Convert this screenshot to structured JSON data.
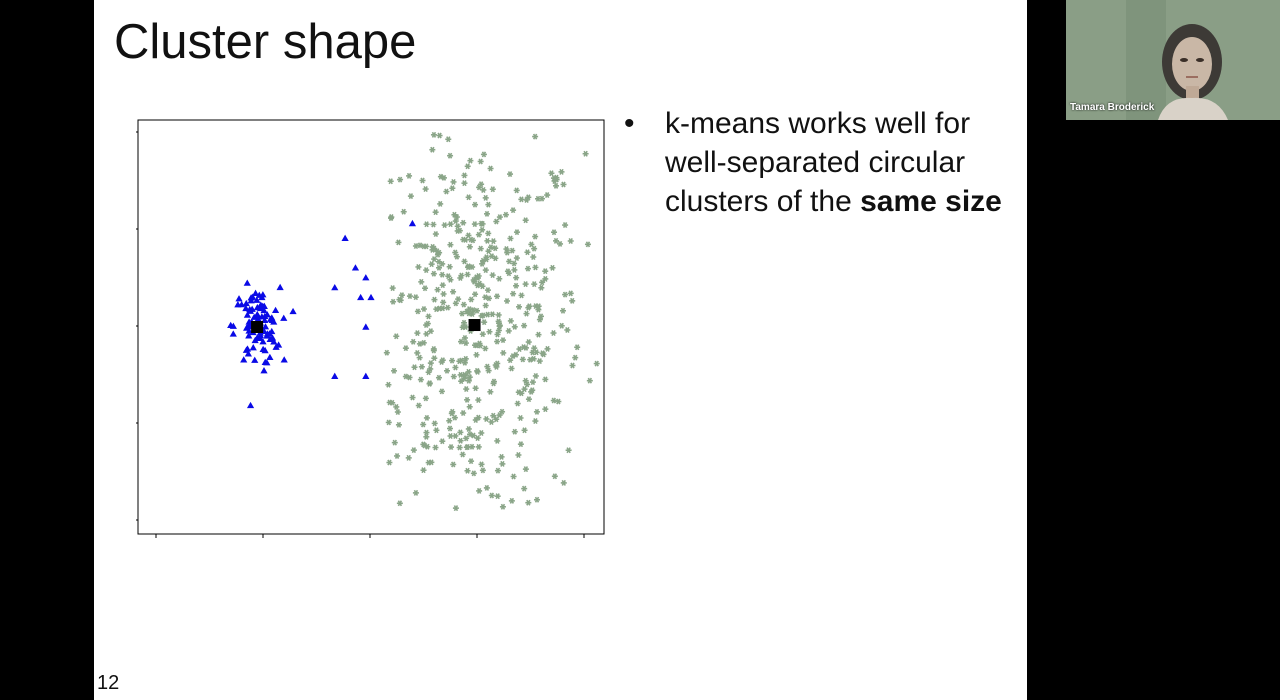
{
  "slide": {
    "title": "Cluster shape",
    "bullet": {
      "text_before": "k-means works well for well-separated circular clusters of the ",
      "bold_text": "same size"
    },
    "page_number": "12"
  },
  "video": {
    "participant_name": "Tamara Broderick",
    "background_color": "#8a9e86"
  },
  "colors": {
    "cluster_small": "#0a0ae6",
    "cluster_large": "#8aa588",
    "centroid": "#000000",
    "axis": "#000000"
  },
  "chart_data": {
    "type": "scatter",
    "title": "",
    "xlabel": "",
    "ylabel": "",
    "x_ticks": 5,
    "y_ticks": 5,
    "tick_labels": false,
    "grid": false,
    "legend": "none",
    "series": [
      {
        "marker": "triangle",
        "color": "#0a0ae6",
        "description_in_slide": "small dense cluster",
        "center": [
          -2.2,
          0.0
        ],
        "spread": 0.22,
        "count": 90,
        "outliers": [
          [
            -0.5,
            0.9
          ],
          [
            -0.7,
            0.4
          ],
          [
            -0.3,
            0.6
          ],
          [
            -0.1,
            0.5
          ],
          [
            0.0,
            0.3
          ],
          [
            -0.2,
            0.3
          ],
          [
            -0.1,
            0.0
          ],
          [
            -0.7,
            -0.5
          ],
          [
            -0.1,
            -0.5
          ],
          [
            0.8,
            1.05
          ]
        ]
      },
      {
        "marker": "star",
        "color": "#8aa588",
        "description_in_slide": "large diffuse cluster",
        "center": [
          2.0,
          0.02
        ],
        "spread": 1.05,
        "count": 520
      }
    ],
    "centroids": [
      [
        -2.2,
        0.0
      ],
      [
        2.0,
        0.02
      ]
    ],
    "xlim": [
      -4.5,
      4.5
    ],
    "ylim": [
      -2.1,
      2.1
    ]
  }
}
